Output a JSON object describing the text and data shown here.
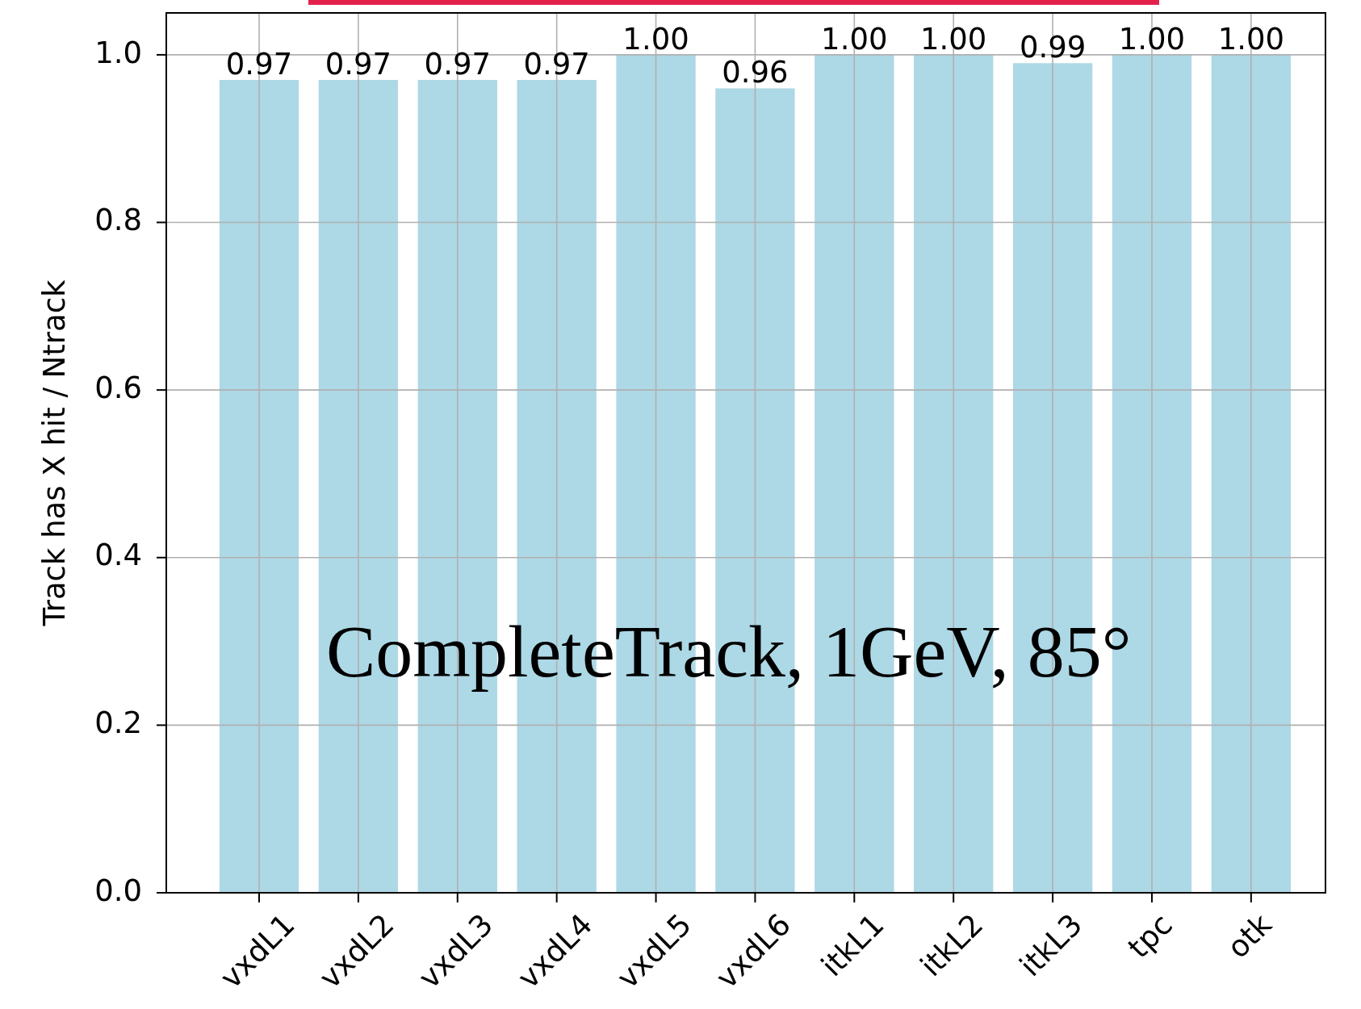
{
  "chart_data": {
    "type": "bar",
    "categories": [
      "vxdL1",
      "vxdL2",
      "vxdL3",
      "vxdL4",
      "vxdL5",
      "vxdL6",
      "itkL1",
      "itkL2",
      "itkL3",
      "tpc",
      "otk"
    ],
    "values": [
      0.97,
      0.97,
      0.97,
      0.97,
      1.0,
      0.96,
      1.0,
      1.0,
      0.99,
      1.0,
      1.0
    ],
    "value_labels": [
      "0.97",
      "0.97",
      "0.97",
      "0.97",
      "1.00",
      "0.96",
      "1.00",
      "1.00",
      "0.99",
      "1.00",
      "1.00"
    ],
    "color": "#add8e6",
    "ylabel": "Track has X hit / Ntrack",
    "ylim": [
      0,
      1.05
    ],
    "yticks": [
      {
        "value": 0,
        "label": "0.0"
      },
      0.2,
      0.4,
      0.6,
      0.8,
      {
        "value": 1,
        "label": "1.0"
      }
    ],
    "grid": true,
    "annotations": [
      "CompleteTrack, 1GeV, 85°"
    ]
  }
}
